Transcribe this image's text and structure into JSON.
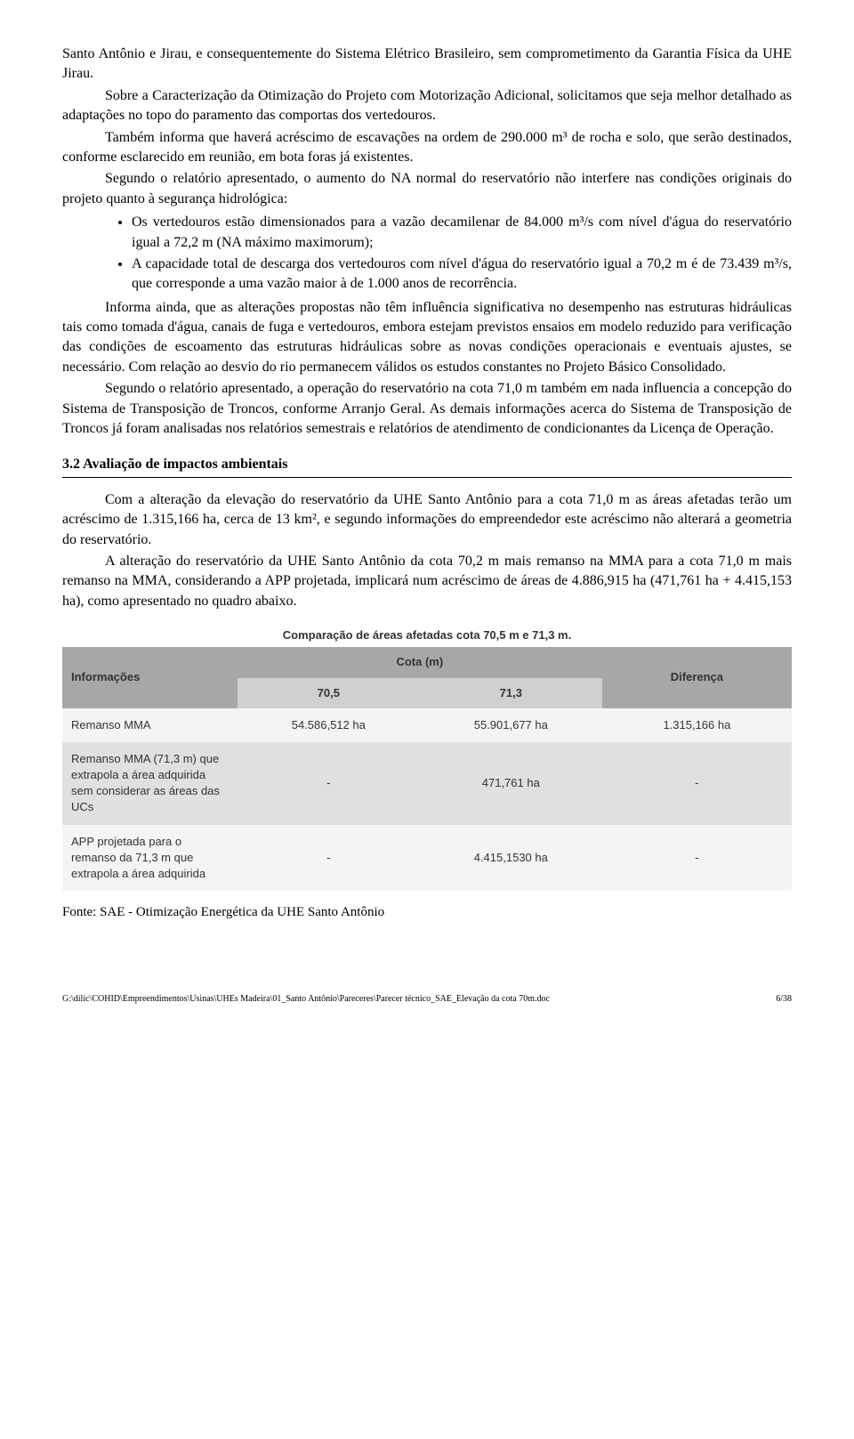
{
  "p1": "Santo Antônio e Jirau, e consequentemente do Sistema Elétrico Brasileiro, sem comprometimento da Garantia Física da UHE Jirau.",
  "p2": "Sobre a Caracterização da Otimização do Projeto com Motorização Adicional, solicitamos que seja melhor detalhado as adaptações no topo do paramento das comportas dos vertedouros.",
  "p3": "Também informa que haverá acréscimo de escavações na ordem de 290.000 m³ de rocha e solo, que serão destinados, conforme esclarecido em reunião, em bota foras já existentes.",
  "p4": "Segundo o relatório apresentado, o aumento do NA normal do reservatório não interfere nas condições originais do projeto quanto à segurança hidrológica:",
  "b1": "Os vertedouros estão dimensionados para a vazão decamilenar de 84.000 m³/s com nível d'água do reservatório igual a 72,2 m (NA máximo maximorum);",
  "b2": "A capacidade total de descarga dos vertedouros com nível d'água do reservatório igual a 70,2 m é de 73.439 m³/s, que corresponde a uma vazão maior à de 1.000 anos de recorrência.",
  "p5": "Informa ainda, que as alterações propostas não têm influência significativa no desempenho nas estruturas hidráulicas tais como tomada d'água, canais de fuga e vertedouros, embora estejam previstos ensaios em modelo reduzido para verificação das condições de escoamento das estruturas hidráulicas sobre as novas condições operacionais e eventuais ajustes, se necessário. Com relação ao desvio do rio permanecem válidos os estudos constantes no Projeto Básico Consolidado.",
  "p6": "Segundo o relatório apresentado, a operação do reservatório na cota 71,0 m também em nada influencia a concepção do Sistema de Transposição de Troncos, conforme Arranjo Geral. As demais informações acerca do Sistema de Transposição de Troncos já foram analisadas nos relatórios semestrais e relatórios de atendimento de condicionantes da Licença de Operação.",
  "section_heading": "3.2 Avaliação de impactos ambientais",
  "p7": "Com a alteração da elevação do reservatório da UHE Santo Antônio para a cota 71,0 m as áreas afetadas terão um acréscimo de 1.315,166 ha, cerca de 13 km², e segundo informações do empreendedor este acréscimo não alterará a geometria do reservatório.",
  "p8": "A alteração do reservatório da UHE Santo Antônio da cota 70,2 m mais remanso na MMA para a cota 71,0 m mais remanso na MMA, considerando a APP projetada, implicará num acréscimo de áreas de 4.886,915 ha (471,761 ha + 4.415,153 ha), como apresentado no quadro abaixo.",
  "table": {
    "caption": "Comparação de áreas afetadas cota 70,5 m e 71,3 m.",
    "header_info": "Informações",
    "header_cota": "Cota (m)",
    "header_diff": "Diferença",
    "sub_705": "70,5",
    "sub_713": "71,3",
    "row1_label": "Remanso MMA",
    "row1_v1": "54.586,512 ha",
    "row1_v2": "55.901,677 ha",
    "row1_diff": "1.315,166 ha",
    "row2_label": "Remanso MMA (71,3 m) que extrapola a área adquirida sem considerar as áreas das UCs",
    "row2_v1": "-",
    "row2_v2": "471,761 ha",
    "row2_diff": "-",
    "row3_label": "APP projetada para o remanso da 71,3 m que extrapola a área adquirida",
    "row3_v1": "-",
    "row3_v2": "4.415,1530 ha",
    "row3_diff": "-",
    "colors": {
      "head_band": "#a7a7a7",
      "sub_band": "#d0d0d0",
      "row_a": "#f4f4f4",
      "row_b": "#e0e0e0",
      "text": "#333333"
    }
  },
  "source_line": "Fonte: SAE - Otimização Energética da UHE Santo Antônio",
  "footer_path": "G:\\dilic\\COHID\\Empreendimentos\\Usinas\\UHEs Madeira\\01_Santo Antônio\\Pareceres\\Parecer técnico_SAE_Elevação da cota 70m.doc",
  "footer_page": "6/38"
}
